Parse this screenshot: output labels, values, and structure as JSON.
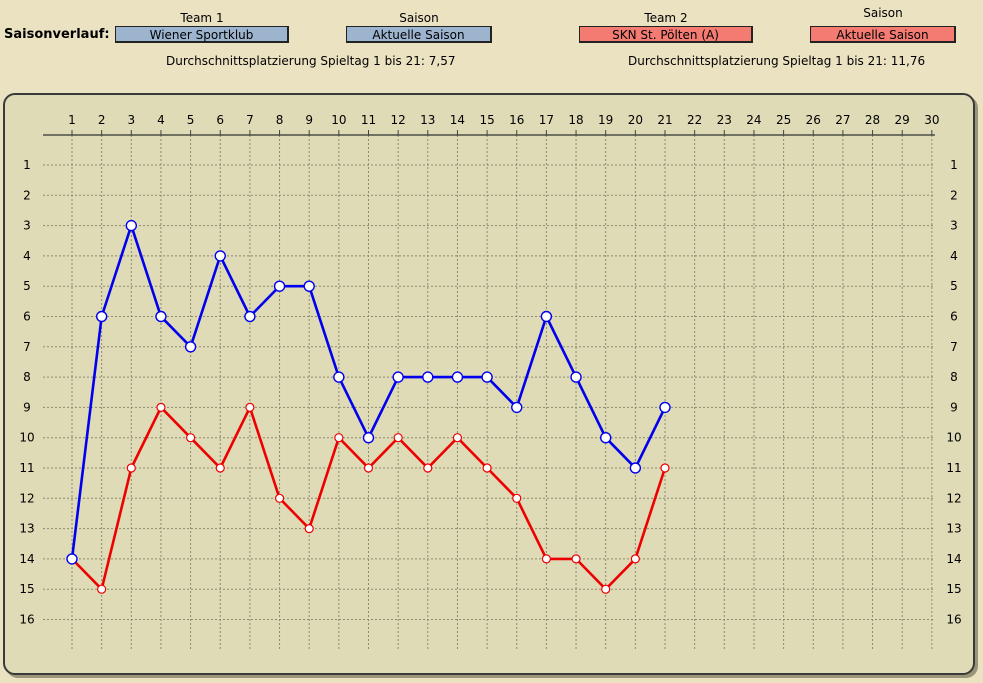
{
  "header": {
    "title": "Saisonverlauf:",
    "team1_label": "Team 1",
    "team1_value": "Wiener Sportklub",
    "season1_label": "Saison",
    "season1_value": "Aktuelle Saison",
    "team2_label": "Team 2",
    "team2_value": "SKN St. Pölten (A)",
    "season2_label": "Saison",
    "season2_value": "Aktuelle Saison",
    "avg1": "Durchschnittsplatzierung Spieltag 1 bis 21:  7,57",
    "avg2": "Durchschnittsplatzierung Spieltag 1 bis 21: 11,76"
  },
  "colors": {
    "team1": "#0000ee",
    "team2": "#ee0000",
    "team1_field": "#9db4cf",
    "team2_field": "#f47b72",
    "background": "#ebe2c2",
    "panel": "#dedbb6"
  },
  "chart_data": {
    "type": "line",
    "x_ticks": [
      1,
      2,
      3,
      4,
      5,
      6,
      7,
      8,
      9,
      10,
      11,
      12,
      13,
      14,
      15,
      16,
      17,
      18,
      19,
      20,
      21,
      22,
      23,
      24,
      25,
      26,
      27,
      28,
      29,
      30
    ],
    "y_ticks": [
      1,
      2,
      3,
      4,
      5,
      6,
      7,
      8,
      9,
      10,
      11,
      12,
      13,
      14,
      15,
      16
    ],
    "xlim": [
      1,
      30
    ],
    "ylim": [
      1,
      16
    ],
    "y_inverted": true,
    "grid": true,
    "series": [
      {
        "name": "Wiener Sportklub",
        "color": "#0000ee",
        "x": [
          1,
          2,
          3,
          4,
          5,
          6,
          7,
          8,
          9,
          10,
          11,
          12,
          13,
          14,
          15,
          16,
          17,
          18,
          19,
          20,
          21
        ],
        "values": [
          14,
          6,
          3,
          6,
          7,
          4,
          6,
          5,
          5,
          8,
          10,
          8,
          8,
          8,
          8,
          9,
          6,
          8,
          10,
          11,
          9
        ]
      },
      {
        "name": "SKN St. Pölten (A)",
        "color": "#ee0000",
        "x": [
          1,
          2,
          3,
          4,
          5,
          6,
          7,
          8,
          9,
          10,
          11,
          12,
          13,
          14,
          15,
          16,
          17,
          18,
          19,
          20,
          21
        ],
        "values": [
          14,
          15,
          11,
          9,
          10,
          11,
          9,
          12,
          13,
          10,
          11,
          10,
          11,
          10,
          11,
          12,
          14,
          14,
          15,
          14,
          11
        ]
      }
    ]
  }
}
